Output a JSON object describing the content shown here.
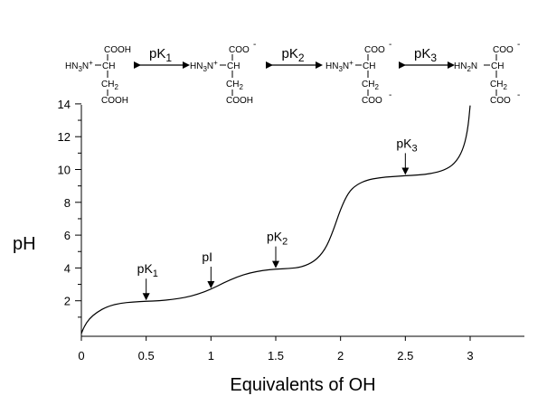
{
  "chart_data": {
    "type": "line",
    "xlabel": "Equivalents of OH",
    "ylabel": "pH",
    "xlim": [
      0,
      3
    ],
    "ylim": [
      0,
      14
    ],
    "x_ticks": [
      "0",
      "0.5",
      "1",
      "1.5",
      "2",
      "2.5",
      "3"
    ],
    "y_ticks": [
      "2",
      "4",
      "6",
      "8",
      "10",
      "12",
      "14"
    ],
    "grid": false,
    "series": [
      {
        "x": [
          0.0,
          0.02,
          0.06,
          0.12,
          0.2,
          0.3,
          0.4,
          0.5,
          0.6,
          0.7,
          0.8,
          0.9,
          1.0,
          1.1,
          1.2,
          1.3,
          1.4,
          1.5,
          1.6,
          1.7,
          1.8,
          1.88,
          1.94,
          2.0,
          2.06,
          2.12,
          2.2,
          2.3,
          2.4,
          2.5,
          2.6,
          2.7,
          2.8,
          2.88,
          2.94,
          2.98,
          3.0
        ],
        "y": [
          0.0,
          0.4,
          0.9,
          1.3,
          1.65,
          1.85,
          1.93,
          1.97,
          2.0,
          2.08,
          2.2,
          2.4,
          2.7,
          3.1,
          3.45,
          3.7,
          3.85,
          3.93,
          3.96,
          4.05,
          4.4,
          5.1,
          6.2,
          7.6,
          8.6,
          9.05,
          9.35,
          9.5,
          9.57,
          9.62,
          9.66,
          9.75,
          9.95,
          10.35,
          11.1,
          12.3,
          13.9
        ]
      }
    ],
    "annotations": [
      {
        "x": 0.5,
        "y": 1.97,
        "label_main": "pK",
        "label_sub": "1"
      },
      {
        "x": 1.0,
        "y": 2.7,
        "label_main": "pI",
        "label_sub": ""
      },
      {
        "x": 1.5,
        "y": 3.93,
        "label_main": "pK",
        "label_sub": "2"
      },
      {
        "x": 2.5,
        "y": 9.62,
        "label_main": "pK",
        "label_sub": "3"
      }
    ],
    "equilibria": [
      "1",
      "2",
      "3"
    ],
    "species": [
      {
        "top": "COOH",
        "left": "H3N",
        "left_sign": "+",
        "ch": "CH",
        "ch2": "CH2",
        "bottom": "COOH",
        "top_sign": "",
        "bottom_sign": ""
      },
      {
        "top": "COO",
        "left": "H3N",
        "left_sign": "+",
        "ch": "CH",
        "ch2": "CH2",
        "bottom": "COOH",
        "top_sign": "-",
        "bottom_sign": ""
      },
      {
        "top": "COO",
        "left": "H3N",
        "left_sign": "+",
        "ch": "CH",
        "ch2": "CH2",
        "bottom": "COO",
        "top_sign": "-",
        "bottom_sign": "-"
      },
      {
        "top": "COO",
        "left": "H2N",
        "left_sign": "",
        "ch": "CH",
        "ch2": "CH2",
        "bottom": "COO",
        "top_sign": "-",
        "bottom_sign": "-"
      }
    ]
  }
}
